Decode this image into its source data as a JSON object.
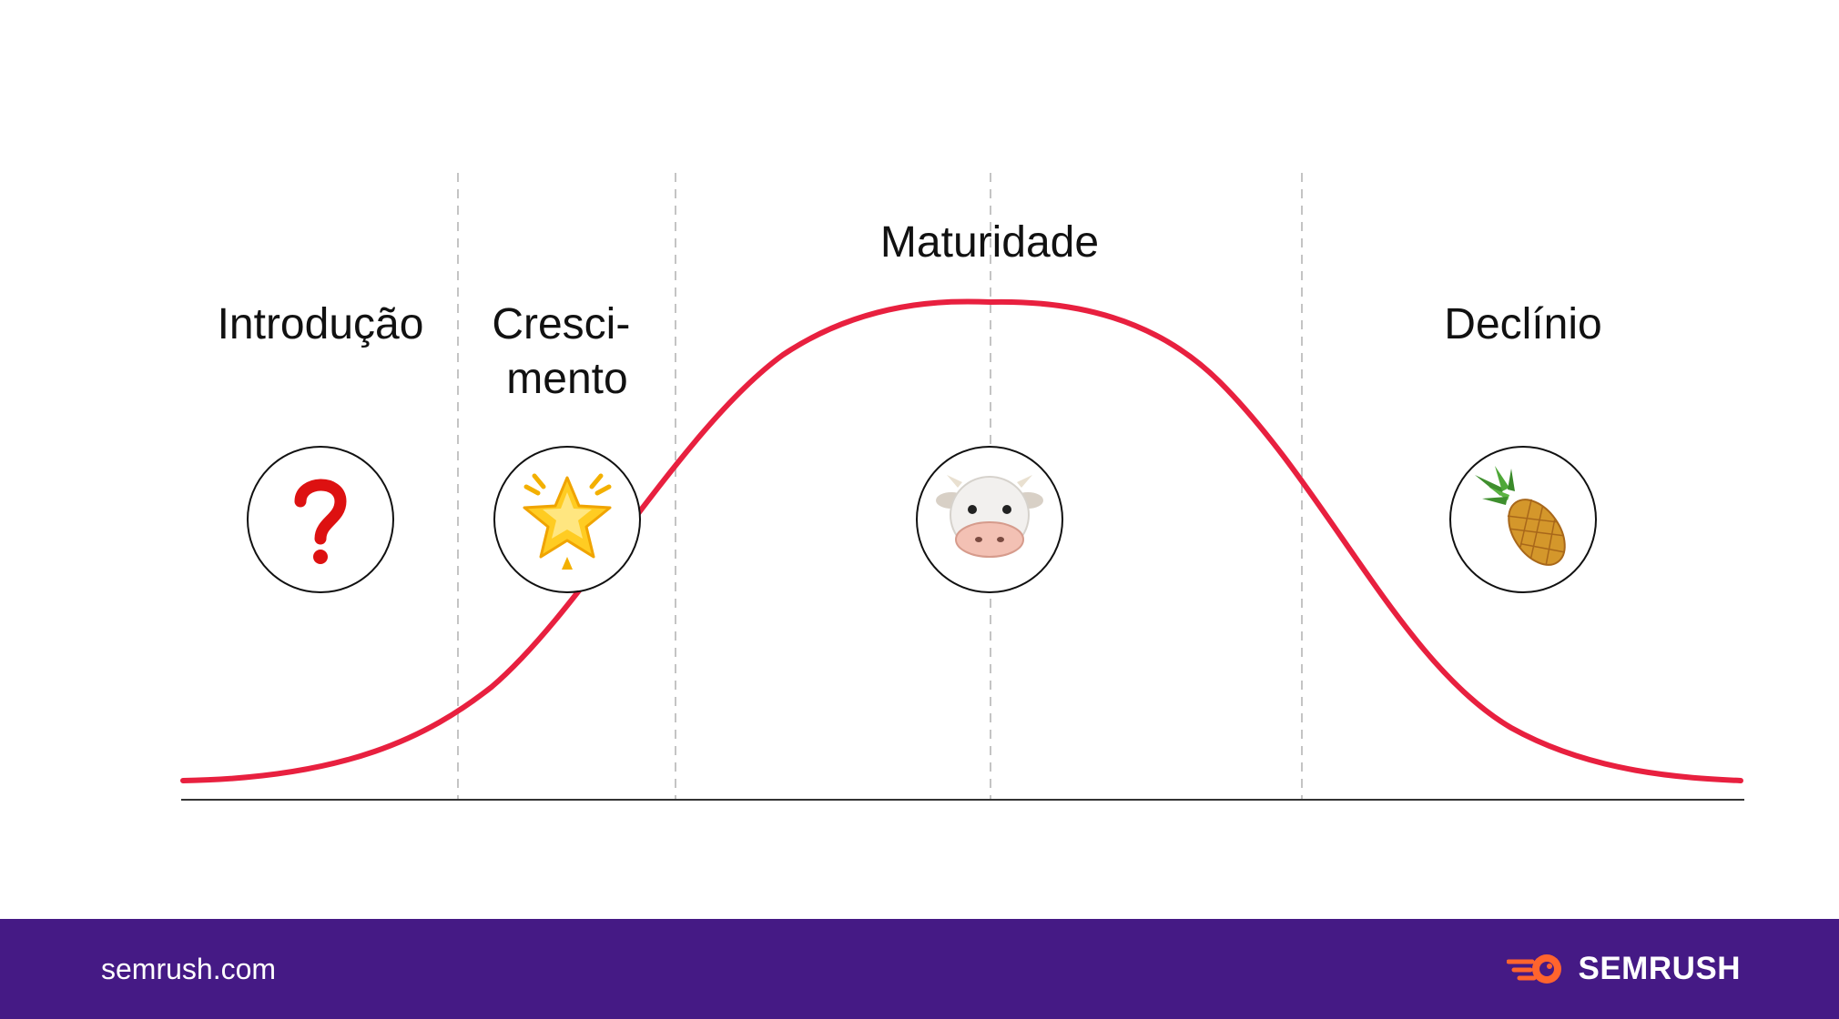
{
  "stages": [
    {
      "label_lines": [
        "Introdução"
      ],
      "icon": "question-mark-icon"
    },
    {
      "label_lines": [
        "Cresci-",
        "mento"
      ],
      "icon": "glowing-star-icon"
    },
    {
      "label_lines": [
        "Maturidade"
      ],
      "icon": "cow-face-icon"
    },
    {
      "label_lines": [
        "Declínio"
      ],
      "icon": "pineapple-icon"
    }
  ],
  "colors": {
    "curve": "#e8203f",
    "footer_background": "#451a85",
    "logo_accent": "#ff642d",
    "question_mark": "#dd1111"
  },
  "footer": {
    "domain": "semrush.com",
    "brand": "SEMRUSH"
  }
}
